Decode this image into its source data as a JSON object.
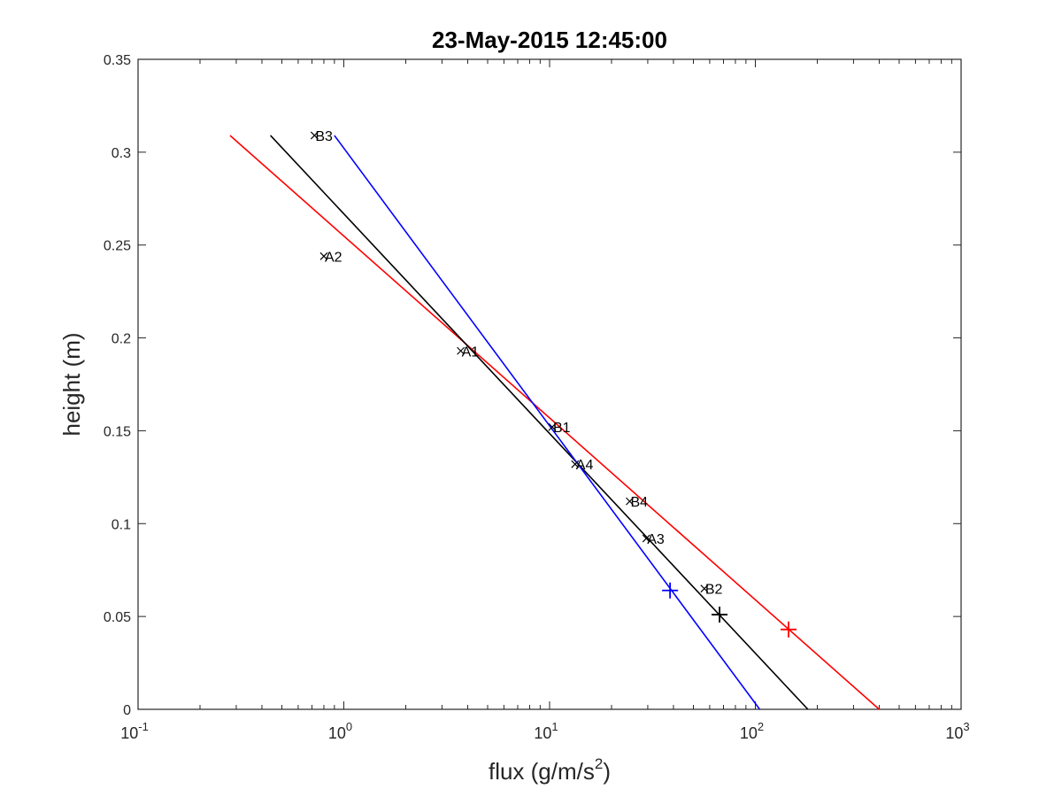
{
  "chart_data": {
    "type": "scatter",
    "title": "23-May-2015 12:45:00",
    "xlabel": "flux (g/m/s",
    "xlabel_sup": "2",
    "xlabel_end": ")",
    "ylabel": "height (m)",
    "xscale": "log",
    "xlim": [
      0.1,
      1000
    ],
    "ylim": [
      0,
      0.35
    ],
    "x_ticks": [
      {
        "value": 0.1,
        "base": "10",
        "exp": "-1"
      },
      {
        "value": 1,
        "base": "10",
        "exp": "0"
      },
      {
        "value": 10,
        "base": "10",
        "exp": "1"
      },
      {
        "value": 100,
        "base": "10",
        "exp": "2"
      },
      {
        "value": 1000,
        "base": "10",
        "exp": "3"
      }
    ],
    "y_ticks": [
      {
        "value": 0,
        "label": "0"
      },
      {
        "value": 0.05,
        "label": "0.05"
      },
      {
        "value": 0.1,
        "label": "0.1"
      },
      {
        "value": 0.15,
        "label": "0.15"
      },
      {
        "value": 0.2,
        "label": "0.2"
      },
      {
        "value": 0.25,
        "label": "0.25"
      },
      {
        "value": 0.3,
        "label": "0.3"
      },
      {
        "value": 0.35,
        "label": "0.35"
      }
    ],
    "grid": false,
    "points": [
      {
        "label": "B3",
        "x": 0.72,
        "y": 0.309
      },
      {
        "label": "A2",
        "x": 0.8,
        "y": 0.244
      },
      {
        "label": "A1",
        "x": 3.7,
        "y": 0.193
      },
      {
        "label": "B1",
        "x": 10.3,
        "y": 0.152
      },
      {
        "label": "A4",
        "x": 13.3,
        "y": 0.132
      },
      {
        "label": "B4",
        "x": 24.5,
        "y": 0.112
      },
      {
        "label": "A3",
        "x": 29.5,
        "y": 0.092
      },
      {
        "label": "B2",
        "x": 56.5,
        "y": 0.065
      }
    ],
    "fit_lines": [
      {
        "color": "#ff0000",
        "points": [
          {
            "x": 0.28,
            "y": 0.309
          },
          {
            "x": 400,
            "y": 0
          }
        ],
        "marker": {
          "x": 145,
          "y": 0.043
        }
      },
      {
        "color": "#000000",
        "points": [
          {
            "x": 0.44,
            "y": 0.309
          },
          {
            "x": 180,
            "y": 0
          }
        ],
        "marker": {
          "x": 67,
          "y": 0.051
        }
      },
      {
        "color": "#0000ff",
        "points": [
          {
            "x": 0.9,
            "y": 0.309
          },
          {
            "x": 105,
            "y": 0
          }
        ],
        "marker": {
          "x": 38.5,
          "y": 0.064
        }
      }
    ]
  }
}
